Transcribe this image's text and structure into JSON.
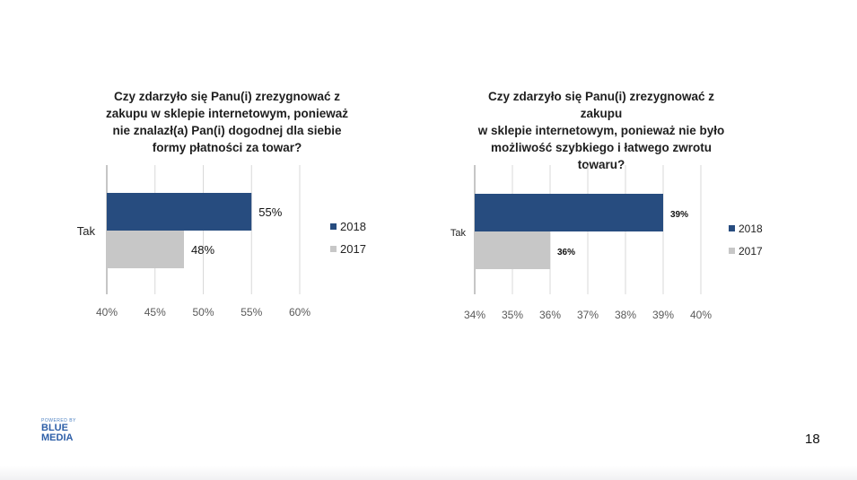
{
  "slide": {
    "page_number": "18",
    "logo": {
      "powered_by": "POWERED BY",
      "line1": "BLUE",
      "line2": "MEDIA"
    }
  },
  "colors": {
    "series_2018": "#274c7f",
    "series_2017": "#c7c7c7",
    "grid": "#d9d9d9",
    "axis": "#8c8c8c",
    "tick": "#595959"
  },
  "chart_data": [
    {
      "type": "bar",
      "orientation": "horizontal",
      "title": "Czy zdarzyło się Panu(i) zrezygnować z zakupu w sklepie internetowym, ponieważ nie znalazł(a) Pan(i) dogodnej dla siebie formy płatności za towar?",
      "title_lines": [
        "Czy zdarzyło się Panu(i) zrezygnować z",
        "zakupu w sklepie internetowym, ponieważ",
        "nie znalazł(a) Pan(i) dogodnej dla siebie",
        "formy płatności za towar?"
      ],
      "categories": [
        "Tak"
      ],
      "series": [
        {
          "name": "2018",
          "values": [
            55
          ],
          "labels": [
            "55%"
          ],
          "color": "#274c7f"
        },
        {
          "name": "2017",
          "values": [
            48
          ],
          "labels": [
            "48%"
          ],
          "color": "#c7c7c7"
        }
      ],
      "xlim": [
        40,
        60
      ],
      "ticks": [
        40,
        45,
        50,
        55,
        60
      ],
      "tick_labels": [
        "40%",
        "45%",
        "50%",
        "55%",
        "60%"
      ],
      "grid": true,
      "legend": "right"
    },
    {
      "type": "bar",
      "orientation": "horizontal",
      "title": "Czy zdarzyło się Panu(i) zrezygnować z zakupu w sklepie internetowym, ponieważ nie było możliwość szybkiego i łatwego zwrotu towaru?",
      "title_lines": [
        "Czy zdarzyło się Panu(i) zrezygnować z zakupu",
        "w sklepie internetowym, ponieważ nie było",
        "możliwość szybkiego i łatwego zwrotu towaru?"
      ],
      "categories": [
        "Tak"
      ],
      "series": [
        {
          "name": "2018",
          "values": [
            39
          ],
          "labels": [
            "39%"
          ],
          "color": "#274c7f"
        },
        {
          "name": "2017",
          "values": [
            36
          ],
          "labels": [
            "36%"
          ],
          "color": "#c7c7c7"
        }
      ],
      "xlim": [
        34,
        40
      ],
      "ticks": [
        34,
        35,
        36,
        37,
        38,
        39,
        40
      ],
      "tick_labels": [
        "34%",
        "35%",
        "36%",
        "37%",
        "38%",
        "39%",
        "40%"
      ],
      "grid": true,
      "legend": "right"
    }
  ]
}
